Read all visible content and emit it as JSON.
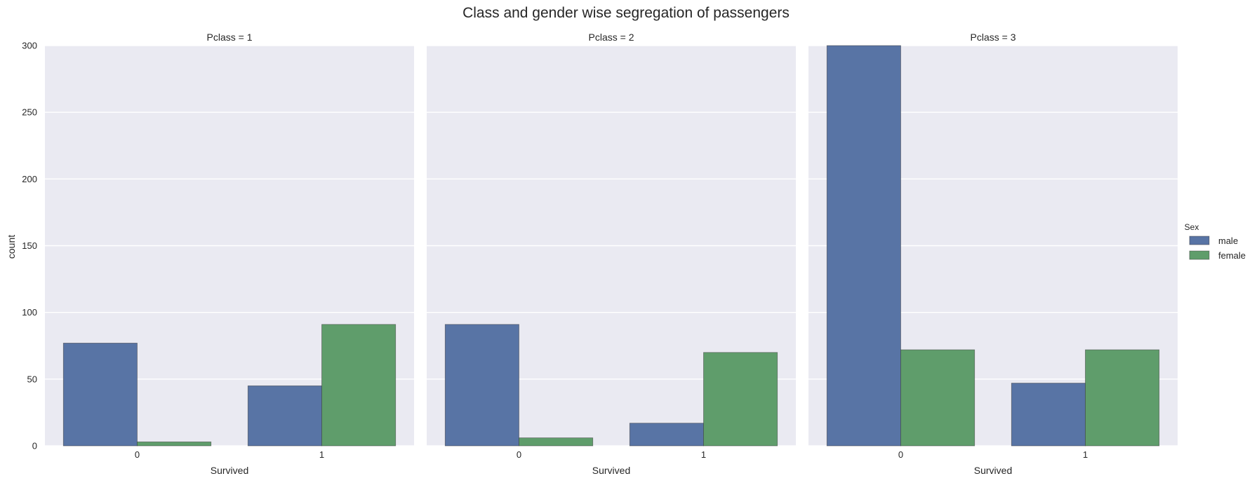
{
  "chart_data": {
    "type": "bar",
    "title": "Class and gender wise segregation of passengers",
    "ylabel": "count",
    "xlabel": "Survived",
    "ylim": [
      0,
      300
    ],
    "yticks": [
      0,
      50,
      100,
      150,
      200,
      250,
      300
    ],
    "categories": [
      "0",
      "1"
    ],
    "grid": true,
    "legend": {
      "title": "Sex",
      "placement": "right",
      "entries": [
        {
          "name": "male",
          "color": "#5874A5"
        },
        {
          "name": "female",
          "color": "#5F9D6B"
        }
      ]
    },
    "panels": [
      {
        "title": "Pclass = 1",
        "series": [
          {
            "name": "male",
            "values": [
              77,
              45
            ]
          },
          {
            "name": "female",
            "values": [
              3,
              91
            ]
          }
        ]
      },
      {
        "title": "Pclass = 2",
        "series": [
          {
            "name": "male",
            "values": [
              91,
              17
            ]
          },
          {
            "name": "female",
            "values": [
              6,
              70
            ]
          }
        ]
      },
      {
        "title": "Pclass = 3",
        "series": [
          {
            "name": "male",
            "values": [
              300,
              47
            ]
          },
          {
            "name": "female",
            "values": [
              72,
              72
            ]
          }
        ]
      }
    ]
  }
}
